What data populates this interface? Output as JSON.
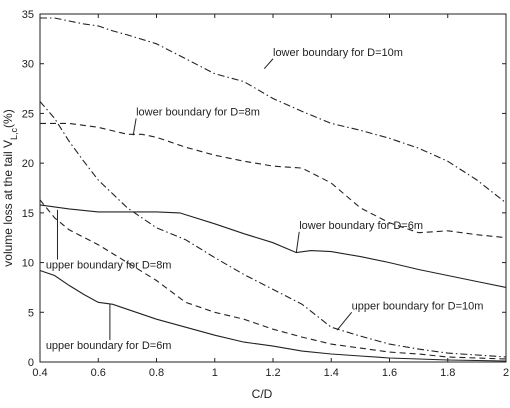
{
  "chart_data": {
    "type": "line",
    "title": "",
    "xlabel": "C/D",
    "ylabel_main": "volume loss at the tail V",
    "ylabel_sub": "L,c",
    "ylabel_unit": "(%)",
    "xlim": [
      0.4,
      2.0
    ],
    "ylim": [
      0,
      35
    ],
    "xticks": [
      0.4,
      0.6,
      0.8,
      1,
      1.2,
      1.4,
      1.6,
      1.8,
      2
    ],
    "xtick_labels": [
      "0.4",
      "0.6",
      "0.8",
      "1",
      "1.2",
      "1.4",
      "1.6",
      "1.8",
      "2"
    ],
    "yticks": [
      0,
      5,
      10,
      15,
      20,
      25,
      30,
      35
    ],
    "ytick_labels": [
      "0",
      "5",
      "10",
      "15",
      "20",
      "25",
      "30",
      "35"
    ],
    "grid": false,
    "legend": "none",
    "series": [
      {
        "name": "lower boundary for D=10m",
        "style": "dashdot",
        "color": "#222222",
        "x": [
          0.4,
          0.45,
          0.5,
          0.55,
          0.6,
          0.65,
          0.7,
          0.8,
          0.9,
          1.0,
          1.1,
          1.2,
          1.3,
          1.4,
          1.5,
          1.6,
          1.7,
          1.8,
          1.9,
          2.0
        ],
        "y": [
          34.6,
          34.6,
          34.3,
          34.0,
          33.8,
          33.3,
          32.9,
          32.0,
          30.5,
          29.0,
          28.2,
          26.5,
          25.2,
          24.0,
          23.3,
          22.5,
          21.5,
          20.2,
          18.3,
          16.0
        ]
      },
      {
        "name": "lower boundary for D=8m",
        "style": "dashed",
        "color": "#222222",
        "x": [
          0.4,
          0.5,
          0.6,
          0.7,
          0.75,
          0.8,
          0.9,
          1.0,
          1.1,
          1.2,
          1.3,
          1.4,
          1.5,
          1.6,
          1.7,
          1.8,
          1.9,
          2.0
        ],
        "y": [
          24.0,
          24.0,
          23.6,
          22.9,
          22.9,
          22.6,
          21.6,
          20.8,
          20.2,
          19.7,
          19.5,
          18.0,
          15.5,
          14.0,
          13.0,
          13.2,
          12.8,
          12.5
        ]
      },
      {
        "name": "lower boundary for D=6m",
        "style": "solid",
        "color": "#222222",
        "x": [
          0.4,
          0.5,
          0.6,
          0.7,
          0.8,
          0.88,
          1.0,
          1.1,
          1.2,
          1.28,
          1.33,
          1.4,
          1.5,
          1.6,
          1.7,
          1.8,
          1.9,
          2.0
        ],
        "y": [
          15.8,
          15.4,
          15.1,
          15.1,
          15.1,
          15.0,
          13.9,
          12.9,
          12.0,
          11.0,
          11.2,
          11.1,
          10.6,
          10.0,
          9.3,
          8.7,
          8.1,
          7.5
        ]
      },
      {
        "name": "upper boundary for D=10m",
        "style": "dashdot",
        "color": "#222222",
        "x": [
          0.4,
          0.45,
          0.5,
          0.55,
          0.6,
          0.7,
          0.8,
          0.9,
          1.0,
          1.1,
          1.2,
          1.3,
          1.4,
          1.5,
          1.6,
          1.7,
          1.8,
          1.9,
          2.0
        ],
        "y": [
          26.2,
          24.5,
          22.2,
          20.2,
          18.3,
          15.5,
          13.5,
          12.3,
          10.5,
          8.8,
          7.3,
          5.8,
          3.5,
          2.6,
          1.8,
          1.3,
          0.9,
          0.7,
          0.5
        ]
      },
      {
        "name": "upper boundary for D=8m",
        "style": "dashed",
        "color": "#222222",
        "x": [
          0.4,
          0.45,
          0.5,
          0.6,
          0.7,
          0.8,
          0.9,
          1.0,
          1.1,
          1.2,
          1.3,
          1.4,
          1.5,
          1.6,
          1.7,
          1.8,
          1.9,
          2.0
        ],
        "y": [
          16.3,
          14.5,
          13.3,
          11.8,
          10.0,
          8.2,
          6.0,
          5.0,
          4.3,
          3.3,
          2.5,
          1.8,
          1.4,
          1.0,
          0.8,
          0.5,
          0.4,
          0.3
        ]
      },
      {
        "name": "upper boundary for D=6m",
        "style": "solid",
        "color": "#222222",
        "x": [
          0.4,
          0.45,
          0.5,
          0.55,
          0.6,
          0.65,
          0.7,
          0.8,
          0.9,
          1.0,
          1.1,
          1.2,
          1.3,
          1.4,
          1.5,
          1.6,
          1.7,
          1.8,
          1.9,
          2.0
        ],
        "y": [
          9.2,
          8.7,
          7.7,
          6.8,
          6.0,
          5.8,
          5.3,
          4.3,
          3.5,
          2.7,
          2.0,
          1.6,
          1.1,
          0.8,
          0.6,
          0.4,
          0.3,
          0.2,
          0.15,
          0.1
        ]
      }
    ],
    "annotations": [
      {
        "text": "lower boundary for D=10m",
        "target": [
          1.17,
          29.5
        ],
        "anchor": [
          1.2,
          30.8
        ]
      },
      {
        "text": "lower boundary for D=8m",
        "target": [
          0.72,
          22.8
        ],
        "anchor": [
          0.73,
          24.8
        ]
      },
      {
        "text": "lower boundary for D=6m",
        "target": [
          1.28,
          11.0
        ],
        "anchor": [
          1.29,
          13.4
        ]
      },
      {
        "text": "upper boundary for D=8m",
        "target": [
          0.46,
          15.3
        ],
        "anchor": [
          0.42,
          9.4
        ]
      },
      {
        "text": "upper boundary for D=10m",
        "target": [
          1.42,
          3.2
        ],
        "anchor": [
          1.47,
          5.3
        ]
      },
      {
        "text": "upper boundary for D=6m",
        "target": [
          0.64,
          5.8
        ],
        "anchor": [
          0.42,
          1.3
        ]
      }
    ]
  }
}
